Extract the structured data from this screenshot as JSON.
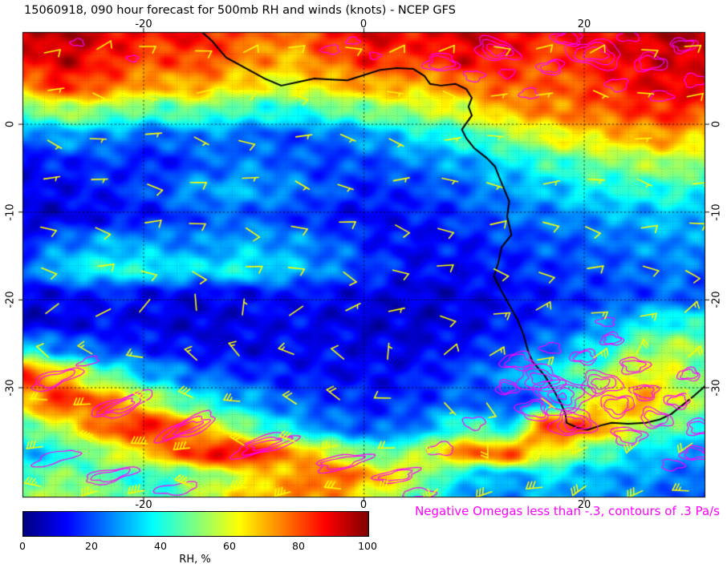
{
  "title": "15060918, 090 hour forecast for 500mb RH and winds (knots) - NCEP GFS",
  "annotation": {
    "text": "Negative Omegas less than -.3, contours of .3 Pa/s",
    "color": "#ff00ff"
  },
  "colorbar": {
    "label": "RH, %",
    "ticks": [
      "0",
      "20",
      "40",
      "60",
      "80",
      "100"
    ],
    "min": 0,
    "max": 100
  },
  "axes": {
    "lon_ticks": [
      "-20",
      "0",
      "20"
    ],
    "lat_ticks": [
      "0",
      "-10",
      "-20",
      "-30"
    ],
    "lon_tick_values": [
      -20,
      0,
      20
    ],
    "lat_tick_values": [
      0,
      -10,
      -20,
      -30
    ],
    "lon_range": [
      -31,
      31
    ],
    "lat_range": [
      10.5,
      -42.5
    ]
  },
  "colors": {
    "wind_barbs": "#ffff00",
    "omega_contours": "#ff00ff",
    "coastline": "#000000",
    "grid": "#000000"
  },
  "chart_data": {
    "type": "heatmap",
    "title": "15060918, 090 hour forecast for 500mb RH and winds (knots) - NCEP GFS",
    "field": "relative humidity (%) at 500mb with wind barbs (knots) and negative omega contours",
    "model": "NCEP GFS",
    "run": "15060918",
    "forecast_hour": 90,
    "colormap": "jet",
    "value_range": [
      0,
      100
    ],
    "lon_range": [
      -31,
      31
    ],
    "lat_range": [
      10.5,
      -42.5
    ],
    "rh_grid": {
      "lons": [
        -31,
        -27,
        -23,
        -19,
        -15,
        -11,
        -7,
        -3,
        1,
        5,
        9,
        13,
        17,
        21,
        25,
        28,
        31
      ],
      "lats": [
        10.5,
        7.5,
        4.5,
        1.5,
        -1.5,
        -4.5,
        -7.5,
        -10.5,
        -13.5,
        -16.5,
        -19.5,
        -22.5,
        -25.5,
        -28.5,
        -31.5,
        -34.5,
        -37.5,
        -40,
        -42.5
      ],
      "values": [
        [
          92,
          95,
          90,
          85,
          88,
          80,
          75,
          85,
          90,
          88,
          92,
          90,
          85,
          88,
          92,
          95,
          95
        ],
        [
          88,
          92,
          85,
          80,
          82,
          75,
          70,
          78,
          85,
          82,
          88,
          85,
          80,
          85,
          90,
          92,
          92
        ],
        [
          75,
          85,
          78,
          70,
          72,
          65,
          60,
          68,
          72,
          70,
          75,
          80,
          78,
          82,
          88,
          90,
          88
        ],
        [
          45,
          55,
          50,
          45,
          48,
          42,
          40,
          45,
          50,
          55,
          60,
          70,
          75,
          78,
          82,
          85,
          80
        ],
        [
          22,
          28,
          25,
          20,
          25,
          22,
          20,
          22,
          28,
          35,
          40,
          50,
          60,
          65,
          70,
          72,
          65
        ],
        [
          12,
          15,
          18,
          14,
          20,
          25,
          22,
          18,
          20,
          25,
          28,
          35,
          42,
          48,
          52,
          55,
          50
        ],
        [
          10,
          12,
          15,
          20,
          28,
          30,
          25,
          20,
          15,
          18,
          22,
          28,
          32,
          38,
          40,
          42,
          38
        ],
        [
          8,
          10,
          12,
          15,
          20,
          22,
          18,
          14,
          12,
          14,
          18,
          22,
          25,
          28,
          30,
          32,
          30
        ],
        [
          15,
          25,
          30,
          28,
          25,
          30,
          28,
          22,
          15,
          12,
          14,
          18,
          20,
          22,
          25,
          28,
          26
        ],
        [
          20,
          35,
          40,
          38,
          35,
          38,
          32,
          25,
          18,
          12,
          12,
          15,
          18,
          20,
          22,
          25,
          22
        ],
        [
          10,
          12,
          15,
          12,
          10,
          12,
          14,
          12,
          10,
          8,
          10,
          12,
          15,
          18,
          20,
          22,
          20
        ],
        [
          8,
          10,
          12,
          10,
          8,
          10,
          12,
          10,
          8,
          8,
          10,
          14,
          18,
          25,
          35,
          40,
          38
        ],
        [
          35,
          25,
          18,
          15,
          12,
          10,
          12,
          12,
          10,
          10,
          14,
          18,
          25,
          35,
          50,
          55,
          50
        ],
        [
          85,
          65,
          45,
          30,
          22,
          18,
          15,
          12,
          12,
          14,
          20,
          28,
          38,
          50,
          62,
          58,
          48
        ],
        [
          70,
          85,
          75,
          55,
          40,
          30,
          22,
          18,
          15,
          18,
          22,
          18,
          28,
          60,
          72,
          60,
          50
        ],
        [
          45,
          60,
          80,
          88,
          70,
          50,
          35,
          25,
          20,
          25,
          45,
          35,
          85,
          75,
          55,
          45,
          40
        ],
        [
          30,
          40,
          55,
          70,
          85,
          90,
          75,
          60,
          45,
          55,
          75,
          80,
          60,
          45,
          35,
          30,
          28
        ],
        [
          45,
          50,
          45,
          40,
          50,
          60,
          70,
          80,
          70,
          55,
          35,
          30,
          35,
          30,
          28,
          25,
          22
        ],
        [
          50,
          55,
          48,
          42,
          55,
          65,
          75,
          72,
          60,
          45,
          30,
          25,
          30,
          28,
          25,
          22,
          20
        ]
      ]
    },
    "wind_field": {
      "units": "knots",
      "lons": [
        -31,
        -20,
        -10,
        0,
        10,
        18,
        31
      ],
      "lats": [
        10,
        2,
        -8,
        -18,
        -28,
        -35,
        -42
      ],
      "u": [
        [
          -8,
          -10,
          -12,
          -10,
          -8,
          -8,
          -10
        ],
        [
          -5,
          -6,
          -8,
          -6,
          -5,
          -6,
          -8
        ],
        [
          -6,
          -9,
          -7,
          -5,
          -7,
          -8,
          -6
        ],
        [
          -10,
          -12,
          -9,
          -11,
          -13,
          -10,
          -12
        ],
        [
          12,
          20,
          16,
          10,
          -15,
          -22,
          -10
        ],
        [
          25,
          48,
          28,
          22,
          -5,
          15,
          20
        ],
        [
          32,
          38,
          35,
          30,
          28,
          30,
          26
        ]
      ],
      "v": [
        [
          -2,
          -3,
          -2,
          -3,
          -2,
          -2,
          -3
        ],
        [
          1,
          2,
          1,
          2,
          1,
          1,
          2
        ],
        [
          1,
          0,
          2,
          1,
          0,
          1,
          0
        ],
        [
          2,
          3,
          2,
          4,
          3,
          2,
          3
        ],
        [
          -5,
          -10,
          -12,
          -8,
          -5,
          -15,
          -20
        ],
        [
          0,
          -8,
          -10,
          -5,
          18,
          25,
          5
        ],
        [
          5,
          2,
          -5,
          8,
          12,
          10,
          8
        ]
      ],
      "barb_lons": [
        -29,
        -24.5,
        -20,
        -15.5,
        -11,
        -6.5,
        -2,
        2.5,
        7,
        11.5,
        16,
        20.5,
        25,
        29.5
      ],
      "barb_lats": [
        8.5,
        3.5,
        -1.5,
        -6.5,
        -11.5,
        -16.5,
        -21.5,
        -26.5,
        -31.5,
        -36.5,
        -41.5
      ]
    },
    "omega_contours": {
      "threshold": -0.3,
      "interval": 0.3,
      "units": "Pa/s",
      "clusters": [
        [
          7,
          7,
          1.5,
          1,
          0,
          2
        ],
        [
          12,
          8.5,
          2,
          1.2,
          20,
          3
        ],
        [
          17,
          6.5,
          1.2,
          0.8,
          -15,
          2
        ],
        [
          21,
          8,
          2.5,
          1.5,
          10,
          3
        ],
        [
          26,
          7,
          1.5,
          1,
          0,
          2
        ],
        [
          29,
          9,
          1.2,
          0.8,
          0,
          2
        ],
        [
          23,
          4.5,
          1,
          0.7,
          0,
          1
        ],
        [
          15,
          3.5,
          0.8,
          0.6,
          0,
          1
        ],
        [
          27,
          3.2,
          1,
          0.6,
          0,
          1
        ],
        [
          10,
          5.5,
          0.9,
          0.6,
          0,
          1
        ],
        [
          18.5,
          9.8,
          1.4,
          0.8,
          0,
          2
        ],
        [
          24,
          10,
          1,
          0.6,
          0,
          1
        ],
        [
          30,
          5,
          1,
          0.7,
          0,
          1
        ],
        [
          13,
          5.8,
          0.7,
          0.5,
          0,
          1
        ],
        [
          -3,
          8.5,
          0.8,
          0.5,
          0,
          1
        ],
        [
          -1,
          9.5,
          0.6,
          0.4,
          0,
          1
        ],
        [
          1,
          7.8,
          0.5,
          0.4,
          0,
          1
        ],
        [
          -21,
          7.5,
          0.5,
          0.35,
          0,
          1
        ],
        [
          -26,
          9.3,
          0.6,
          0.4,
          0,
          1
        ],
        [
          -28,
          -29,
          2.5,
          0.8,
          -25,
          2
        ],
        [
          -22,
          -32,
          3,
          0.9,
          -25,
          3
        ],
        [
          -16,
          -34.5,
          3,
          0.9,
          -28,
          3
        ],
        [
          -9,
          -36.5,
          3,
          0.9,
          -20,
          3
        ],
        [
          -2,
          -38.5,
          2.5,
          0.8,
          -15,
          2
        ],
        [
          3,
          -40,
          2,
          0.7,
          -15,
          2
        ],
        [
          -25,
          -27,
          1,
          0.4,
          -25,
          1
        ],
        [
          -28,
          -38,
          2.2,
          0.6,
          -20,
          1
        ],
        [
          -23,
          -40,
          2.5,
          0.7,
          -15,
          2
        ],
        [
          -17,
          -41.5,
          2,
          0.6,
          -10,
          1
        ],
        [
          14,
          -27,
          1.5,
          1,
          0,
          2
        ],
        [
          16,
          -29,
          2,
          1.5,
          10,
          3
        ],
        [
          18,
          -31,
          2.5,
          2,
          0,
          4
        ],
        [
          15.5,
          -32.5,
          1.5,
          1.2,
          0,
          2
        ],
        [
          19,
          -34,
          2,
          1.5,
          -10,
          3
        ],
        [
          21.5,
          -29.5,
          1.8,
          1.3,
          0,
          3
        ],
        [
          23,
          -32,
          1.5,
          1.2,
          0,
          2
        ],
        [
          20,
          -26.5,
          1.2,
          0.8,
          0,
          2
        ],
        [
          22.5,
          -24.5,
          1,
          0.7,
          0,
          2
        ],
        [
          24.5,
          -27.5,
          1.3,
          0.9,
          0,
          2
        ],
        [
          25.5,
          -30.5,
          1.2,
          0.9,
          0,
          2
        ],
        [
          17,
          -25.5,
          0.9,
          0.6,
          0,
          1
        ],
        [
          13,
          -30,
          1,
          0.8,
          0,
          2
        ],
        [
          26.5,
          -33.5,
          1.5,
          1,
          20,
          2
        ],
        [
          28.5,
          -31.5,
          1.2,
          0.8,
          0,
          2
        ],
        [
          29.5,
          -28.5,
          1,
          0.7,
          0,
          2
        ],
        [
          30.5,
          -34.5,
          1.3,
          0.9,
          0,
          2
        ],
        [
          24,
          -35.5,
          1.5,
          1,
          10,
          2
        ],
        [
          22,
          -22.5,
          0.8,
          0.5,
          0,
          1
        ],
        [
          30,
          -37.5,
          1.2,
          0.8,
          0,
          2
        ],
        [
          28,
          -38.8,
          1,
          0.6,
          0,
          1
        ],
        [
          10,
          -34,
          1,
          0.7,
          0,
          1
        ],
        [
          7,
          -37,
          1.2,
          0.7,
          -10,
          1
        ],
        [
          5,
          -42,
          1.5,
          0.5,
          0,
          1
        ]
      ]
    },
    "coastline": [
      [
        -14.7,
        10.5
      ],
      [
        -13.8,
        9.5
      ],
      [
        -13.2,
        8.6
      ],
      [
        -12.5,
        7.6
      ],
      [
        -11.5,
        6.9
      ],
      [
        -10.6,
        6.3
      ],
      [
        -9,
        5.2
      ],
      [
        -7.5,
        4.4
      ],
      [
        -6,
        4.8
      ],
      [
        -4.5,
        5.2
      ],
      [
        -3,
        5.1
      ],
      [
        -1.5,
        5
      ],
      [
        0,
        5.6
      ],
      [
        1.5,
        6.2
      ],
      [
        3,
        6.4
      ],
      [
        4.5,
        6.3
      ],
      [
        5.5,
        5.5
      ],
      [
        6,
        4.6
      ],
      [
        7,
        4.4
      ],
      [
        8.3,
        4.6
      ],
      [
        9.3,
        4
      ],
      [
        9.8,
        3
      ],
      [
        9.5,
        2
      ],
      [
        9.8,
        1
      ],
      [
        9.4,
        0.3
      ],
      [
        8.9,
        -0.6
      ],
      [
        9.3,
        -1.6
      ],
      [
        10,
        -2.7
      ],
      [
        11.2,
        -3.9
      ],
      [
        11.9,
        -4.8
      ],
      [
        12.3,
        -6.1
      ],
      [
        13.2,
        -8.8
      ],
      [
        13,
        -10.5
      ],
      [
        13.4,
        -12.6
      ],
      [
        12.5,
        -14
      ],
      [
        12.2,
        -15.8
      ],
      [
        11.8,
        -17.3
      ],
      [
        12.5,
        -19
      ],
      [
        13.3,
        -20.8
      ],
      [
        14,
        -22.4
      ],
      [
        14.5,
        -24
      ],
      [
        14.9,
        -25.8
      ],
      [
        15.3,
        -27
      ],
      [
        16.4,
        -28.6
      ],
      [
        17.2,
        -30.2
      ],
      [
        17.9,
        -31.8
      ],
      [
        18.3,
        -33
      ],
      [
        18.4,
        -34
      ],
      [
        19.5,
        -34.6
      ],
      [
        20.3,
        -34.8
      ],
      [
        21.5,
        -34.3
      ],
      [
        22.5,
        -34
      ],
      [
        24,
        -34.1
      ],
      [
        25.6,
        -34
      ],
      [
        26.9,
        -33.6
      ],
      [
        27.9,
        -33
      ],
      [
        29,
        -31.9
      ],
      [
        30,
        -30.9
      ],
      [
        31,
        -29.8
      ]
    ]
  }
}
